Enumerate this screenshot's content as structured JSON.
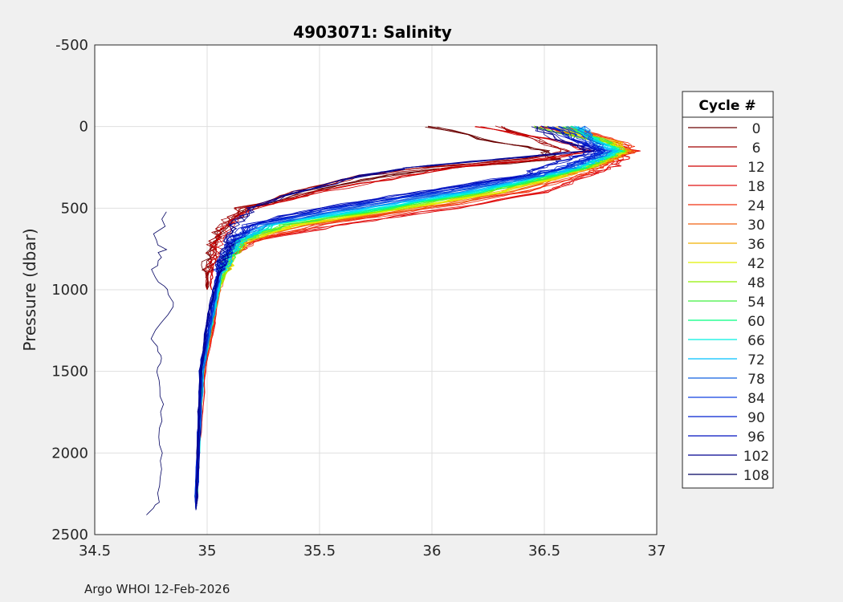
{
  "chart_data": {
    "type": "line",
    "title": "4903071:  Salinity",
    "xlabel": "",
    "ylabel": "Pressure (dbar)",
    "xlim": [
      34.5,
      37
    ],
    "ylim": [
      -500,
      2500
    ],
    "y_reversed": true,
    "xticks": [
      "34.5",
      "35",
      "35.5",
      "36",
      "36.5",
      "37"
    ],
    "yticks": [
      "-500",
      "0",
      "500",
      "1000",
      "1500",
      "2000",
      "2500"
    ],
    "grid": true,
    "legend": {
      "title": "Cycle #",
      "placement": "right"
    },
    "pressure_levels": [
      0,
      100,
      150,
      200,
      250,
      300,
      400,
      500,
      600,
      700,
      800,
      900,
      1000,
      1200,
      1500,
      2000,
      2350
    ],
    "series": [
      {
        "name": "0",
        "color": "#6b0000",
        "salinity": [
          36.0,
          36.3,
          36.5,
          36.55,
          36.1,
          35.8,
          35.45,
          35.2,
          35.08,
          35.02,
          35.0,
          35.0,
          35.0
        ]
      },
      {
        "name": "6",
        "color": "#a00000",
        "salinity": [
          36.3,
          36.5,
          36.6,
          36.4,
          36.0,
          35.7,
          35.4,
          35.15,
          35.06,
          35.03,
          35.02,
          35.0,
          35.0
        ]
      },
      {
        "name": "12",
        "color": "#d00000",
        "salinity": [
          36.2,
          36.6,
          36.7,
          36.5,
          36.1,
          35.9,
          35.5,
          35.2,
          35.1,
          35.05,
          35.03,
          35.02,
          35.02
        ]
      },
      {
        "name": "18",
        "color": "#e01010",
        "salinity": [
          36.5,
          36.8,
          36.9,
          36.85,
          36.8,
          36.7,
          36.5,
          36.1,
          35.6,
          35.2,
          35.1,
          35.05,
          35.05,
          35.03,
          34.99,
          34.96,
          34.95
        ]
      },
      {
        "name": "24",
        "color": "#f03010",
        "salinity": [
          36.6,
          36.85,
          36.9,
          36.8,
          36.75,
          36.65,
          36.4,
          36.0,
          35.5,
          35.2,
          35.1,
          35.06,
          35.05,
          35.03,
          34.98,
          34.96,
          34.95
        ]
      },
      {
        "name": "30",
        "color": "#f06010",
        "salinity": [
          36.6,
          36.8,
          36.88,
          36.8,
          36.72,
          36.6,
          36.35,
          35.95,
          35.45,
          35.18,
          35.1,
          35.07,
          35.06,
          35.02,
          34.98,
          34.96,
          34.95
        ]
      },
      {
        "name": "36",
        "color": "#f0b000",
        "salinity": [
          36.55,
          36.82,
          36.86,
          36.8,
          36.7,
          36.6,
          36.3,
          35.9,
          35.4,
          35.18,
          35.1,
          35.08,
          35.05,
          35.02,
          34.98,
          34.96,
          34.95
        ]
      },
      {
        "name": "42",
        "color": "#e0f000",
        "salinity": [
          36.5,
          36.8,
          36.85,
          36.78,
          36.7,
          36.58,
          36.3,
          35.88,
          35.4,
          35.17,
          35.1,
          35.08,
          35.05,
          35.02,
          34.98,
          34.96,
          34.95
        ]
      },
      {
        "name": "48",
        "color": "#90f000",
        "salinity": [
          36.45,
          36.78,
          36.85,
          36.78,
          36.7,
          36.55,
          36.25,
          35.85,
          35.35,
          35.16,
          35.1,
          35.08,
          35.05,
          35.02,
          34.98,
          34.96,
          34.95
        ]
      },
      {
        "name": "54",
        "color": "#40f040",
        "salinity": [
          36.6,
          36.78,
          36.84,
          36.76,
          36.68,
          36.55,
          36.25,
          35.8,
          35.35,
          35.15,
          35.1,
          35.07,
          35.05,
          35.02,
          34.98,
          34.96,
          34.95
        ]
      },
      {
        "name": "60",
        "color": "#00ff80",
        "salinity": [
          36.62,
          36.76,
          36.83,
          36.75,
          36.67,
          36.53,
          36.2,
          35.8,
          35.3,
          35.15,
          35.1,
          35.06,
          35.05,
          35.02,
          34.98,
          34.96,
          34.95
        ]
      },
      {
        "name": "66",
        "color": "#00f0e0",
        "salinity": [
          36.63,
          36.75,
          36.82,
          36.75,
          36.66,
          36.5,
          36.2,
          35.75,
          35.3,
          35.15,
          35.1,
          35.06,
          35.05,
          35.02,
          34.98,
          34.96,
          34.95
        ]
      },
      {
        "name": "72",
        "color": "#00c0ff",
        "salinity": [
          36.65,
          36.74,
          36.8,
          36.74,
          36.65,
          36.5,
          36.15,
          35.7,
          35.28,
          35.14,
          35.09,
          35.06,
          35.05,
          35.02,
          34.98,
          34.96,
          34.95
        ]
      },
      {
        "name": "78",
        "color": "#1060e0",
        "salinity": [
          36.66,
          36.72,
          36.78,
          36.72,
          36.62,
          36.48,
          36.1,
          35.65,
          35.25,
          35.13,
          35.08,
          35.06,
          35.04,
          35.02,
          34.98,
          34.96,
          34.95
        ]
      },
      {
        "name": "84",
        "color": "#1040e0",
        "salinity": [
          36.58,
          36.7,
          36.76,
          36.7,
          36.6,
          36.45,
          36.05,
          35.6,
          35.22,
          35.12,
          35.08,
          35.05,
          35.04,
          35.01,
          34.97,
          34.96,
          34.95
        ]
      },
      {
        "name": "90",
        "color": "#0020d0",
        "salinity": [
          36.55,
          36.68,
          36.75,
          36.68,
          36.58,
          36.42,
          36.0,
          35.55,
          35.2,
          35.12,
          35.08,
          35.05,
          35.04,
          35.01,
          34.97,
          34.96,
          34.95
        ]
      },
      {
        "name": "96",
        "color": "#0010c0",
        "salinity": [
          36.5,
          36.66,
          36.73,
          36.6,
          36.5,
          36.4,
          35.95,
          35.5,
          35.18,
          35.11,
          35.07,
          35.05,
          35.03,
          35.0,
          34.97,
          34.96,
          34.95
        ]
      },
      {
        "name": "102",
        "color": "#000090",
        "salinity": [
          36.45,
          36.6,
          36.7,
          36.3,
          35.9,
          35.7,
          35.4,
          35.2,
          35.12,
          35.1,
          35.07,
          35.05,
          35.03,
          35.0,
          34.97,
          34.96,
          34.95
        ]
      },
      {
        "name": "108",
        "color": "#000060",
        "pressure": [
          520,
          700,
          800,
          900,
          1000,
          1100,
          1300,
          1400,
          1500,
          1700,
          1900,
          2100,
          2300,
          2380
        ],
        "salinity": [
          34.8,
          34.78,
          34.8,
          34.76,
          34.82,
          34.85,
          34.75,
          34.8,
          34.78,
          34.8,
          34.79,
          34.8,
          34.78,
          34.73
        ]
      }
    ]
  },
  "footer": "Argo WHOI 12-Feb-2026"
}
